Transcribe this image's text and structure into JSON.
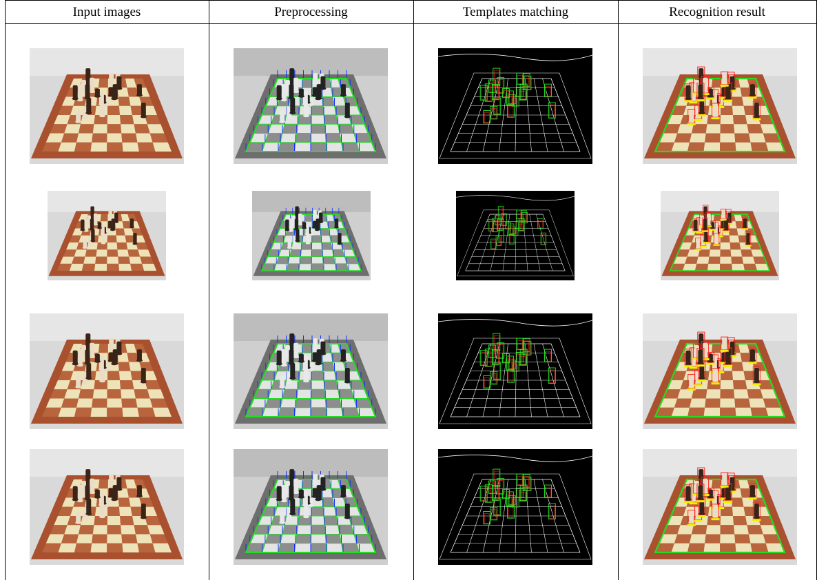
{
  "table": {
    "columns": [
      "Input images",
      "Preprocessing",
      "Templates matching",
      "Recognition result"
    ]
  },
  "colors": {
    "board_light": "#eee3b8",
    "board_dark": "#b8643d",
    "board_frame": "#a9502e",
    "wall": "#d9d9d9",
    "grid_green": "#22dd22",
    "grid_blue": "#1030ff",
    "grid_red": "#ff2020",
    "box_red": "#ff2020",
    "box_green": "#22ee22",
    "edge_bg": "#000000",
    "edge_line": "#ffffff"
  }
}
